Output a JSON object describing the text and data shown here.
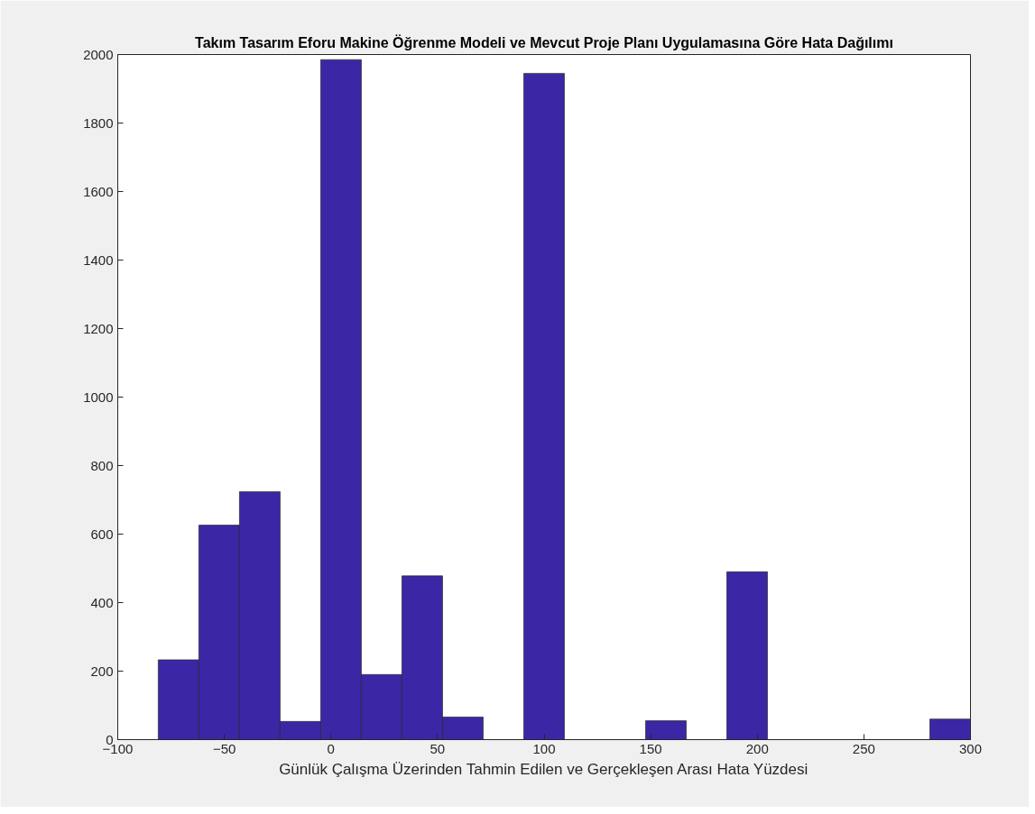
{
  "chart_data": {
    "type": "histogram",
    "title": "Takım Tasarım Eforu Makine Öğrenme Modeli ve Mevcut Proje Planı Uygulamasına Göre Hata Dağılımı",
    "xlabel": "Günlük Çalışma Üzerinden Tahmin Edilen ve Gerçekleşen Arası Hata Yüzdesi",
    "bins": [
      -81,
      -61.95,
      -42.9,
      -23.85,
      -4.8,
      14.25,
      33.3,
      52.35,
      71.4,
      90.45,
      109.5,
      128.55,
      147.6,
      166.65,
      185.7,
      204.75,
      223.8,
      242.85,
      261.9,
      280.95,
      300
    ],
    "values": [
      233,
      626,
      724,
      53,
      1985,
      190,
      478,
      66,
      0,
      1945,
      0,
      0,
      55,
      0,
      490,
      0,
      0,
      0,
      0,
      60
    ],
    "color": "#3b27a6",
    "xlim": [
      -100,
      300
    ],
    "xticks": [
      -100,
      -50,
      0,
      50,
      100,
      150,
      200,
      250,
      300
    ],
    "ylim": [
      0,
      2000
    ],
    "yticks": [
      0,
      200,
      400,
      600,
      800,
      1000,
      1200,
      1400,
      1600,
      1800,
      2000
    ],
    "grid": false
  }
}
